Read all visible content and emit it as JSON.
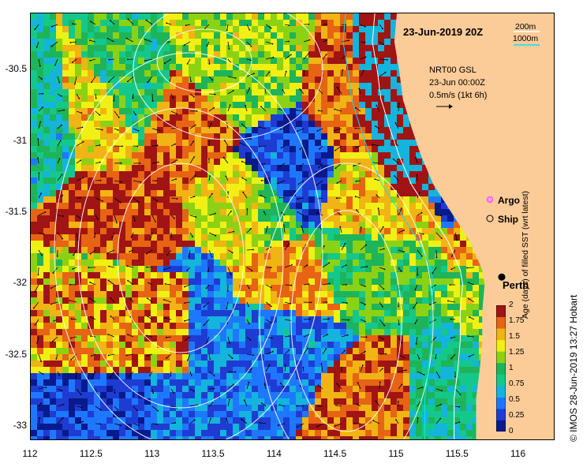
{
  "map": {
    "title": "23-Jun-2019 20Z",
    "product_lines": [
      "NRT00 GSL",
      "23-Jun 00:00Z",
      "0.5m/s (1kt 6h)"
    ],
    "contour_legend": [
      {
        "label": "200m",
        "color": "#ffffff"
      },
      {
        "label": "1000m",
        "color": "#00e5ff"
      }
    ],
    "legend": [
      {
        "label": "Argo",
        "marker": "magenta-circle",
        "color": "#ff33ff"
      },
      {
        "label": "Ship",
        "marker": "black-open-circle",
        "color": "#000000"
      }
    ],
    "city": {
      "label": "Perth",
      "lon": 115.86,
      "lat": -31.95
    },
    "land_color": "#fbcb98",
    "x_axis": {
      "ticks": [
        "112",
        "112.5",
        "113",
        "113.5",
        "114",
        "114.5",
        "115",
        "115.5",
        "116"
      ],
      "values": [
        112,
        112.5,
        113,
        113.5,
        114,
        114.5,
        115,
        115.5,
        116
      ],
      "range": [
        112,
        116.3
      ]
    },
    "y_axis": {
      "ticks": [
        "-30.5",
        "-31",
        "-31.5",
        "-32",
        "-32.5",
        "-33"
      ],
      "values": [
        -30.5,
        -31,
        -31.5,
        -32,
        -32.5,
        -33
      ],
      "range": [
        -33.1,
        -30.1
      ]
    },
    "colorbar": {
      "title": "Age (days) of filled SST (wrt latest)",
      "ticks": [
        "0",
        "0.25",
        "0.5",
        "0.75",
        "1",
        "1.25",
        "1.5",
        "1.75",
        "2"
      ],
      "colors": [
        "#0a1a8c",
        "#1e3cd2",
        "#1e78ff",
        "#14b4dc",
        "#14c88c",
        "#1eb45a",
        "#8cd214",
        "#f0f014",
        "#f0b414",
        "#e66414",
        "#a01414"
      ]
    },
    "credit": "© IMOS 28-Jun-2019 13:27 Hobart"
  }
}
